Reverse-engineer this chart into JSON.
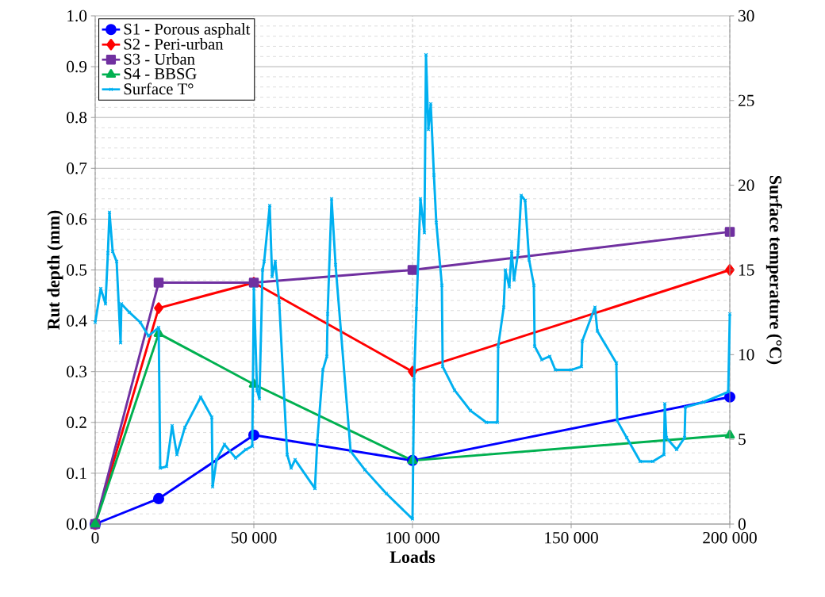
{
  "chart_data": {
    "type": "line",
    "xlabel": "Loads",
    "ylabel": "Rut depth (mm)",
    "y2label": "Surface temperature (°C)",
    "xlim": [
      0,
      200000
    ],
    "ylim": [
      0,
      1
    ],
    "y2lim": [
      0,
      30
    ],
    "xticks": [
      0,
      {
        "value": 50000,
        "label": "50 000"
      },
      {
        "value": 100000,
        "label": "100 000"
      },
      {
        "value": 150000,
        "label": "150 000"
      },
      {
        "value": 200000,
        "label": "200 000"
      }
    ],
    "yticks": [
      {
        "value": 0,
        "label": "0.0"
      },
      0.1,
      0.2,
      0.3,
      0.4,
      0.5,
      0.6,
      0.7,
      0.8,
      0.9,
      {
        "value": 1,
        "label": "1.0"
      }
    ],
    "y2ticks": [
      0,
      5,
      10,
      15,
      20,
      25,
      30
    ],
    "grid": true,
    "legend": "top left",
    "x": [
      0,
      20000,
      50000,
      100000,
      200000
    ],
    "series": [
      {
        "name": "S1 - Porous asphalt",
        "color": "#0000ff",
        "marker": "circle",
        "values": [
          0,
          0.05,
          0.175,
          0.125,
          0.25
        ]
      },
      {
        "name": "S2 - Peri-urban",
        "color": "#ff0000",
        "marker": "diamond",
        "values": [
          0,
          0.425,
          0.475,
          0.3,
          0.5
        ]
      },
      {
        "name": "S3 - Urban",
        "color": "#7030a0",
        "marker": "square",
        "values": [
          0,
          0.475,
          0.475,
          0.5,
          0.575
        ]
      },
      {
        "name": "S4 - BBSG",
        "color": "#00b050",
        "marker": "triangle",
        "values": [
          0,
          0.375,
          0.275,
          0.125,
          0.175
        ]
      },
      {
        "name": "Surface T°",
        "color": "#00b0f0",
        "marker": "cross",
        "axis": "y2",
        "x": [
          0,
          1750,
          3250,
          4000,
          4500,
          5500,
          6750,
          8000,
          8250,
          10750,
          14250,
          16750,
          20000,
          20500,
          22500,
          24250,
          25750,
          28250,
          33250,
          36750,
          37000,
          38250,
          40750,
          44250,
          47500,
          49500,
          50000,
          51000,
          51750,
          52750,
          53250,
          55000,
          55750,
          56750,
          58000,
          60500,
          61750,
          63000,
          69250,
          70000,
          71750,
          73000,
          73250,
          74500,
          75750,
          80500,
          85000,
          91750,
          100000,
          100500,
          101250,
          102500,
          103750,
          104250,
          105000,
          105750,
          106750,
          107500,
          109250,
          109500,
          113250,
          118250,
          123250,
          126750,
          127000,
          128750,
          129250,
          130500,
          131250,
          132000,
          133250,
          134250,
          135500,
          136750,
          138250,
          138500,
          140750,
          143250,
          145000,
          150000,
          153250,
          153500,
          157500,
          158250,
          164250,
          164500,
          167500,
          171750,
          175750,
          179250,
          179500,
          180000,
          183250,
          185750,
          186000,
          191750,
          199500,
          200000
        ],
        "values": [
          11.9,
          13.9,
          13.0,
          16.0,
          18.4,
          16.1,
          15.5,
          10.7,
          13.0,
          12.5,
          11.9,
          11.1,
          11.6,
          3.3,
          3.4,
          5.8,
          4.1,
          5.7,
          7.5,
          6.3,
          2.2,
          3.8,
          4.7,
          3.9,
          4.4,
          4.6,
          13.9,
          7.9,
          7.4,
          15.0,
          15.5,
          18.8,
          14.6,
          15.5,
          13.1,
          4.1,
          3.3,
          3.8,
          2.1,
          4.9,
          9.1,
          9.9,
          12.4,
          19.2,
          15.3,
          4.3,
          3.2,
          1.8,
          0.3,
          8.5,
          12.7,
          19.2,
          17.2,
          27.7,
          23.3,
          24.8,
          20.6,
          17.8,
          14.1,
          9.3,
          7.9,
          6.7,
          6.0,
          6.0,
          10.5,
          12.8,
          15.0,
          14.0,
          16.1,
          14.4,
          16.0,
          19.4,
          19.1,
          15.6,
          14.1,
          10.5,
          9.7,
          9.9,
          9.1,
          9.1,
          9.3,
          10.8,
          12.8,
          11.4,
          9.5,
          6.1,
          5.1,
          3.7,
          3.7,
          4.1,
          7.1,
          5.1,
          4.4,
          5.1,
          6.9,
          7.2,
          7.8,
          12.4
        ]
      }
    ]
  }
}
